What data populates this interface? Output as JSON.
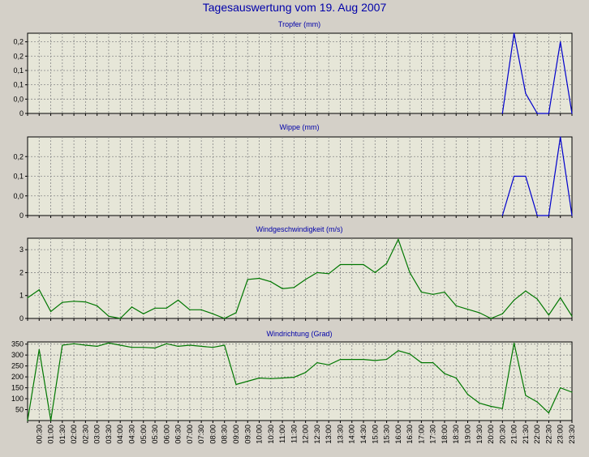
{
  "page_title": "Tagesauswertung vom 19. Aug 2007",
  "colors": {
    "blue_series": "#0000cc",
    "green_series": "#007700",
    "title": "#0000aa",
    "plot_bg": "#e6e6d8",
    "grid": "#888888"
  },
  "chart_data": [
    {
      "type": "line",
      "title": "Tropfer (mm)",
      "ylim": [
        0,
        0.28
      ],
      "ytick_values": [
        0,
        0.05,
        0.1,
        0.15,
        0.2,
        0.25
      ],
      "ytick_labels": [
        "0",
        "0,0",
        "0,1",
        "0,1",
        "0,2",
        "0,2"
      ],
      "color": "#0000cc",
      "x": [
        20.5,
        21.0,
        21.5,
        22.0,
        22.5,
        23.0,
        23.5
      ],
      "values": [
        0,
        0.28,
        0.07,
        0,
        0,
        0.25,
        0
      ]
    },
    {
      "type": "line",
      "title": "Wippe (mm)",
      "ylim": [
        0,
        0.28
      ],
      "ytick_values": [
        0,
        0.07,
        0.14,
        0.21
      ],
      "ytick_labels": [
        "0",
        "0,0",
        "0,1",
        "0,2"
      ],
      "color": "#0000cc",
      "x": [
        20.5,
        21.0,
        21.5,
        22.0,
        22.5,
        23.0,
        23.5
      ],
      "values": [
        0,
        0.14,
        0.14,
        0,
        0,
        0.28,
        0
      ]
    },
    {
      "type": "line",
      "title": "Windgeschwindigkeit (m/s)",
      "ylim": [
        0,
        3.5
      ],
      "ytick_values": [
        0,
        1,
        2,
        3
      ],
      "ytick_labels": [
        "0",
        "1",
        "2",
        "3"
      ],
      "color": "#007700",
      "x": [
        0,
        0.5,
        1,
        1.5,
        2,
        2.5,
        3,
        3.5,
        4,
        4.5,
        5,
        5.5,
        6,
        6.5,
        7,
        7.5,
        8,
        8.5,
        9,
        9.5,
        10,
        10.5,
        11,
        11.5,
        12,
        12.5,
        13,
        13.5,
        14,
        14.5,
        15,
        15.5,
        16,
        16.5,
        17,
        17.5,
        18,
        18.5,
        19,
        19.5,
        20,
        20.5,
        21,
        21.5,
        22,
        22.5,
        23,
        23.5
      ],
      "values": [
        0.9,
        1.25,
        0.3,
        0.7,
        0.75,
        0.72,
        0.55,
        0.1,
        0.0,
        0.5,
        0.2,
        0.45,
        0.45,
        0.8,
        0.38,
        0.38,
        0.2,
        0.0,
        0.25,
        1.7,
        1.75,
        1.6,
        1.3,
        1.35,
        1.7,
        2.0,
        1.95,
        2.35,
        2.35,
        2.35,
        2.0,
        2.4,
        3.45,
        2.0,
        1.15,
        1.05,
        1.15,
        0.55,
        0.4,
        0.25,
        0.0,
        0.2,
        0.8,
        1.2,
        0.85,
        0.15,
        0.9,
        0.1
      ]
    },
    {
      "type": "line",
      "title": "Windrichtung (Grad)",
      "ylim": [
        0,
        360
      ],
      "ytick_values": [
        50,
        100,
        150,
        200,
        250,
        300,
        350
      ],
      "ytick_labels": [
        "50",
        "100",
        "150",
        "200",
        "250",
        "300",
        "350"
      ],
      "color": "#007700",
      "x": [
        0,
        0.5,
        1,
        1.5,
        2,
        2.5,
        3,
        3.5,
        4,
        4.5,
        5,
        5.5,
        6,
        6.5,
        7,
        7.5,
        8,
        8.5,
        9,
        9.5,
        10,
        10.5,
        11,
        11.5,
        12,
        12.5,
        13,
        13.5,
        14,
        14.5,
        15,
        15.5,
        16,
        16.5,
        17,
        17.5,
        18,
        18.5,
        19,
        19.5,
        20,
        20.5,
        21,
        21.5,
        22,
        22.5,
        23,
        23.5
      ],
      "values": [
        0,
        325,
        0,
        345,
        352,
        345,
        340,
        355,
        345,
        335,
        335,
        332,
        352,
        340,
        345,
        340,
        335,
        345,
        165,
        180,
        195,
        192,
        195,
        198,
        220,
        265,
        255,
        280,
        280,
        280,
        275,
        280,
        320,
        305,
        265,
        265,
        215,
        195,
        120,
        80,
        65,
        55,
        355,
        115,
        85,
        35,
        150,
        130
      ]
    }
  ],
  "x_axis": {
    "range": [
      0,
      23.5
    ],
    "tick_labels": [
      "00:30",
      "01:00",
      "01:30",
      "02:00",
      "02:30",
      "03:00",
      "03:30",
      "04:00",
      "04:30",
      "05:00",
      "05:30",
      "06:00",
      "06:30",
      "07:00",
      "07:30",
      "08:00",
      "08:30",
      "09:00",
      "09:30",
      "10:00",
      "10:30",
      "11:00",
      "11:30",
      "12:00",
      "12:30",
      "13:00",
      "13:30",
      "14:00",
      "14:30",
      "15:00",
      "15:30",
      "16:00",
      "16:30",
      "17:00",
      "17:30",
      "18:00",
      "18:30",
      "19:00",
      "19:30",
      "20:00",
      "20:30",
      "21:00",
      "21:30",
      "22:00",
      "22:30",
      "23:00",
      "23:30"
    ]
  }
}
